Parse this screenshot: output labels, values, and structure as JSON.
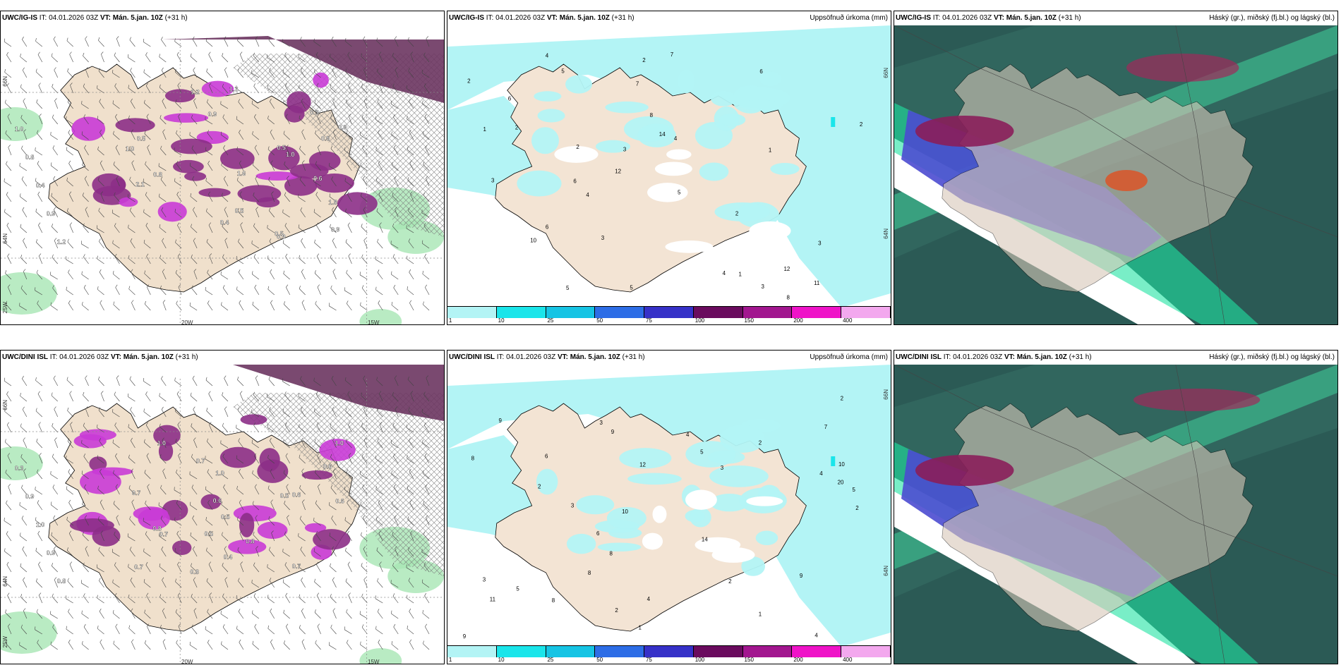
{
  "panels": [
    {
      "model": "UWC/IG-IS",
      "it_label": "IT:",
      "it": "04.01.2026 03Z",
      "vt_label": "VT:",
      "vt": "Mán. 5.jan. 10Z",
      "lead": "(+31 h)",
      "title_right": "",
      "kind": "wind",
      "coords": {
        "lat_top": "66N",
        "lat_mid": "64N",
        "lat_low": "25W",
        "lon_a": "20W",
        "lon_b": "15W"
      }
    },
    {
      "model": "UWC/IG-IS",
      "it_label": "IT:",
      "it": "04.01.2026 03Z",
      "vt_label": "VT:",
      "vt": "Mán. 5.jan. 10Z",
      "lead": "(+31 h)",
      "title_right": "Uppsöfnuð úrkoma (mm)",
      "kind": "precip",
      "coords": {
        "lat_top": "66N",
        "lat_mid": "64N"
      }
    },
    {
      "model": "UWC/IG-IS",
      "it_label": "IT:",
      "it": "04.01.2026 03Z",
      "vt_label": "VT:",
      "vt": "Mán. 5.jan. 10Z",
      "lead": "(+31 h)",
      "title_right": "Háský (gr.), miðský (fj.bl.) og lágský (bl.)",
      "kind": "cloud"
    },
    {
      "model": "UWC/DINI ISL",
      "it_label": "IT:",
      "it": "04.01.2026 03Z",
      "vt_label": "VT:",
      "vt": "Mán. 5.jan. 10Z",
      "lead": "(+31 h)",
      "title_right": "",
      "kind": "wind",
      "coords": {
        "lat_top": "66N",
        "lat_mid": "64N",
        "lat_low": "25W",
        "lon_a": "20W",
        "lon_b": "15W"
      }
    },
    {
      "model": "UWC/DINI ISL",
      "it_label": "IT:",
      "it": "04.01.2026 03Z",
      "vt_label": "VT:",
      "vt": "Mán. 5.jan. 10Z",
      "lead": "(+31 h)",
      "title_right": "Uppsöfnuð úrkoma (mm)",
      "kind": "precip",
      "coords": {
        "lat_top": "66N",
        "lat_mid": "64N"
      }
    },
    {
      "model": "UWC/DINI ISL",
      "it_label": "IT:",
      "it": "04.01.2026 03Z",
      "vt_label": "VT:",
      "vt": "Mán. 5.jan. 10Z",
      "lead": "(+31 h)",
      "title_right": "Háský (gr.), miðský (fj.bl.) og lágský (bl.)",
      "kind": "cloud"
    }
  ],
  "precip_legend": {
    "ticks": [
      "1",
      "10",
      "25",
      "50",
      "75",
      "100",
      "150",
      "200",
      "400"
    ],
    "colors": [
      "#b3f4f5",
      "#1ae5ea",
      "#16c4e4",
      "#2d6de6",
      "#3631c8",
      "#6a0b5e",
      "#a2168f",
      "#ef13c8",
      "#f3a8ee"
    ]
  },
  "wind_labels_top": [
    "1.0",
    "0.8",
    "0.4",
    "0.9",
    "1.2",
    "1.8",
    "0.6",
    "0.3",
    "0.5",
    "0.9",
    "0.5",
    "0.9",
    "0.8",
    "1.6",
    "0.4",
    "1.3",
    "0.5",
    "1.0",
    "0.9",
    "0.5",
    "0.5",
    "2.1",
    "1.2",
    "0.9",
    "1.0"
  ],
  "wind_labels_bottom": [
    "0.3",
    "0.9",
    "1.0",
    "0.9",
    "0.8",
    "0.5",
    "0.7",
    "0.6",
    "0.5",
    "0.4",
    "0.7",
    "0.6",
    "0.8",
    "0.5",
    "0.6",
    "0.7",
    "1.0",
    "0.8",
    "0.6",
    "0.7",
    "1.0",
    "0.8",
    "1.0",
    "0.7"
  ],
  "precip_labels_top": [
    "10",
    "4",
    "5",
    "3",
    "5",
    "4",
    "5",
    "3",
    "6",
    "4",
    "7",
    "11",
    "6",
    "2",
    "7",
    "12",
    "8",
    "14",
    "12",
    "2",
    "6",
    "4",
    "2",
    "3",
    "5",
    "2",
    "1",
    "2",
    "1",
    "2",
    "8",
    "6",
    "3",
    "1",
    "3"
  ],
  "precip_labels_bottom": [
    "2",
    "4",
    "4",
    "2",
    "8",
    "4",
    "7",
    "10",
    "11",
    "9",
    "5",
    "8",
    "6",
    "4",
    "9",
    "6",
    "20",
    "14",
    "5",
    "3",
    "2",
    "10",
    "3",
    "8",
    "12",
    "9",
    "8",
    "9",
    "3",
    "2",
    "1",
    "2",
    "3",
    "5",
    "1",
    "2"
  ]
}
